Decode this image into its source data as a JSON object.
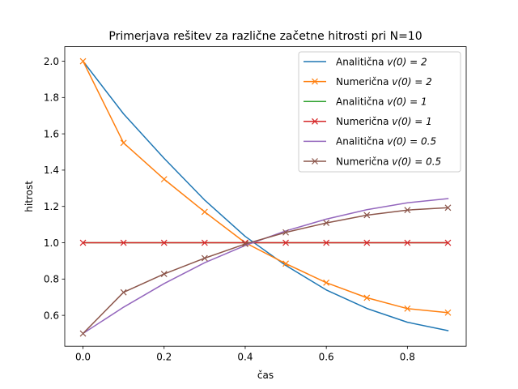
{
  "chart_data": {
    "type": "line",
    "title": "Primerjava rešitev za različne začetne hitrosti pri N=10",
    "xlabel": "čas",
    "ylabel": "hitrost",
    "xlim": [
      -0.045,
      0.945
    ],
    "ylim": [
      0.43,
      2.08
    ],
    "xticks": [
      "0.0",
      "0.2",
      "0.4",
      "0.6",
      "0.8"
    ],
    "xtick_values": [
      0.0,
      0.2,
      0.4,
      0.6,
      0.8
    ],
    "yticks": [
      "0.6",
      "0.8",
      "1.0",
      "1.2",
      "1.4",
      "1.6",
      "1.8",
      "2.0"
    ],
    "ytick_values": [
      0.6,
      0.8,
      1.0,
      1.2,
      1.4,
      1.6,
      1.8,
      2.0
    ],
    "grid": false,
    "legend_position": "top-right",
    "x": [
      0.0,
      0.1,
      0.2,
      0.3,
      0.4,
      0.5,
      0.6,
      0.7,
      0.8,
      0.9
    ],
    "series": [
      {
        "name": "Analitična v(0) = 2",
        "legend_prefix": "Analitična ",
        "legend_math": "v(0) = 2",
        "color": "#1f77b4",
        "marker": "none",
        "values": [
          2.0,
          1.71,
          1.465,
          1.235,
          1.035,
          0.875,
          0.74,
          0.638,
          0.562,
          0.516
        ]
      },
      {
        "name": "Numerična v(0) = 2",
        "legend_prefix": "Numerična ",
        "legend_math": "v(0) = 2",
        "color": "#ff7f0e",
        "marker": "x",
        "values": [
          2.0,
          1.55,
          1.35,
          1.17,
          1.0,
          0.885,
          0.78,
          0.697,
          0.637,
          0.615
        ]
      },
      {
        "name": "Analitična v(0) = 1",
        "legend_prefix": "Analitična ",
        "legend_math": "v(0) = 1",
        "color": "#2ca02c",
        "marker": "none",
        "values": [
          1.0,
          1.0,
          1.0,
          1.0,
          1.0,
          1.0,
          1.0,
          1.0,
          1.0,
          1.0
        ]
      },
      {
        "name": "Numerična v(0) = 1",
        "legend_prefix": "Numerična ",
        "legend_math": "v(0) = 1",
        "color": "#d62728",
        "marker": "x",
        "values": [
          1.0,
          1.0,
          1.0,
          1.0,
          1.0,
          1.0,
          1.0,
          1.0,
          1.0,
          1.0
        ]
      },
      {
        "name": "Analitična v(0) = 0.5",
        "legend_prefix": "Analitična ",
        "legend_math": "v(0) = 0.5",
        "color": "#9467bd",
        "marker": "none",
        "values": [
          0.5,
          0.645,
          0.775,
          0.89,
          0.985,
          1.065,
          1.13,
          1.182,
          1.22,
          1.243
        ]
      },
      {
        "name": "Numerična v(0) = 0.5",
        "legend_prefix": "Numerična ",
        "legend_math": "v(0) = 0.5",
        "color": "#8c564b",
        "marker": "x",
        "values": [
          0.5,
          0.727,
          0.828,
          0.915,
          0.993,
          1.057,
          1.109,
          1.152,
          1.18,
          1.193
        ]
      }
    ]
  }
}
